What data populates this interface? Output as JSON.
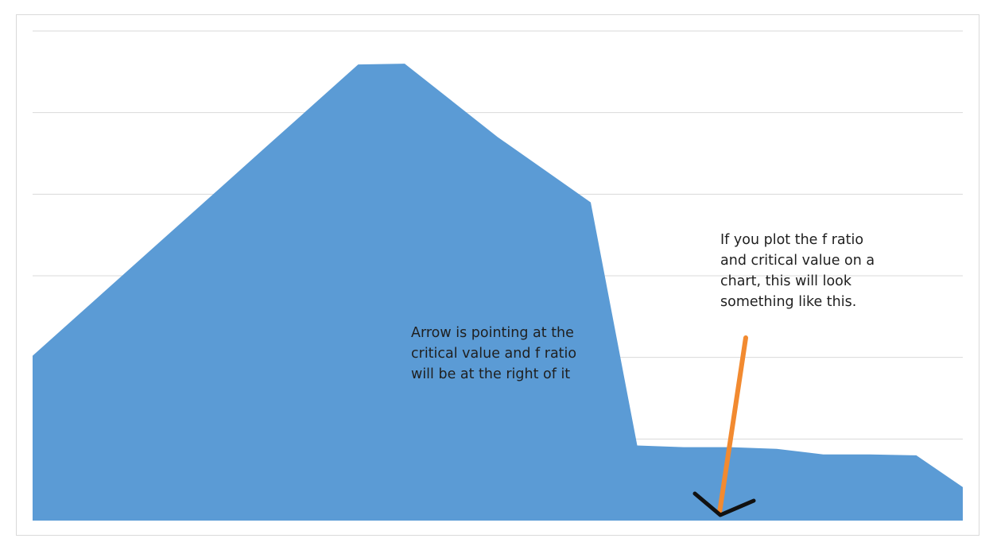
{
  "chart_data": {
    "type": "area",
    "x": [
      0,
      1,
      2,
      3,
      4,
      5,
      6,
      7,
      8,
      9,
      10,
      11,
      12,
      13,
      14,
      15,
      16,
      17,
      18,
      19,
      20
    ],
    "values": [
      20.2,
      25.3,
      30.4,
      35.5,
      40.6,
      45.7,
      50.8,
      55.9,
      56.0,
      51.5,
      47.0,
      43.0,
      39.0,
      9.2,
      9.0,
      9.0,
      8.8,
      8.1,
      8.1,
      8.0,
      4.1
    ],
    "ylim": [
      0,
      60
    ],
    "grid": true,
    "gridline_count": 6,
    "fill_color": "#5b9bd5",
    "title": "",
    "xlabel": "",
    "ylabel": ""
  },
  "annotations": {
    "right_note": "If you plot the f ratio\nand critical value on a\nchart, this will look\nsomething like this.",
    "center_note": "Arrow is pointing at the\ncritical value and f ratio\nwill be at the right of it",
    "pointer_color": "#f28a30",
    "arrowhead_color": "#111111"
  }
}
